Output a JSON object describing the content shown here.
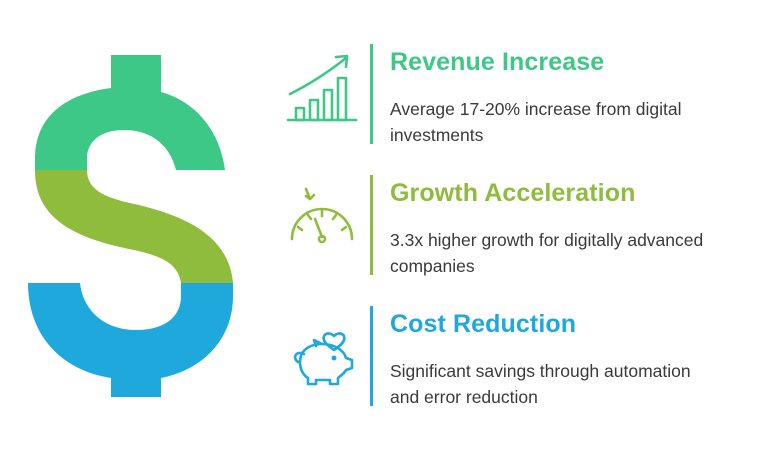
{
  "colors": {
    "green": "#3ec887",
    "lime": "#8fbc3c",
    "blue": "#1ea8db",
    "text": "#3a3a3a"
  },
  "dollar_sign": {
    "icon": "dollar-sign-icon"
  },
  "items": [
    {
      "title": "Revenue Increase",
      "description": "Average 17-20% increase from digital investments",
      "icon": "growth-chart-icon",
      "color": "#3ec887"
    },
    {
      "title": "Growth Acceleration",
      "description": "3.3x higher growth for digitally advanced companies",
      "icon": "speedometer-icon",
      "color": "#8fbc3c"
    },
    {
      "title": "Cost Reduction",
      "description": "Significant savings through automation and error reduction",
      "icon": "piggy-bank-heart-icon",
      "color": "#1ea8db"
    }
  ]
}
